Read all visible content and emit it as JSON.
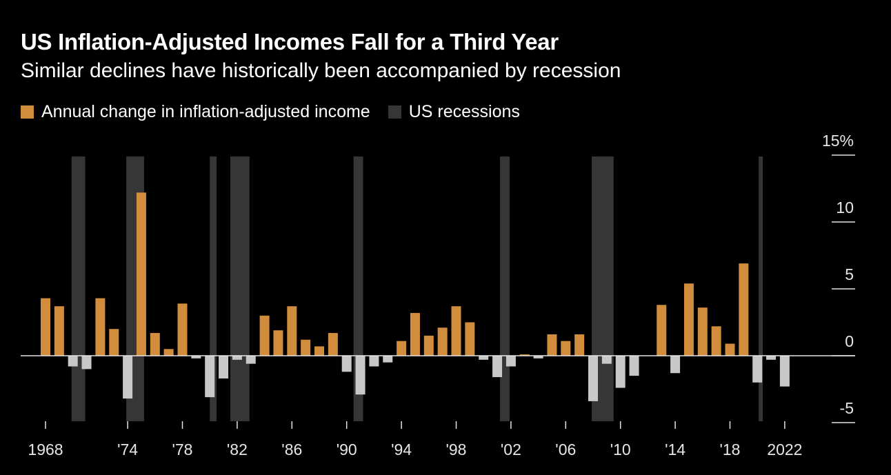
{
  "title": "US Inflation-Adjusted Incomes Fall for a Third Year",
  "subtitle": "Similar declines have historically been accompanied by recession",
  "legend": [
    {
      "label": "Annual change in inflation-adjusted income",
      "color": "#d18c3c"
    },
    {
      "label": "US recessions",
      "color": "#363636"
    }
  ],
  "chart_data": {
    "type": "bar",
    "title": "US Inflation-Adjusted Incomes Fall for a Third Year",
    "subtitle": "Similar declines have historically been accompanied by recession",
    "xlabel": "",
    "ylabel": "",
    "ylim": [
      -5,
      15
    ],
    "y_ticks": [
      15,
      10,
      5,
      0,
      -5
    ],
    "y_tick_labels": [
      "15%",
      "10",
      "5",
      "0",
      "-5"
    ],
    "x_ticks": [
      1968,
      1974,
      1978,
      1982,
      1986,
      1990,
      1994,
      1998,
      2002,
      2006,
      2010,
      2014,
      2018,
      2022
    ],
    "x_tick_labels": [
      "1968",
      "'74",
      "'78",
      "'82",
      "'86",
      "'90",
      "'94",
      "'98",
      "'02",
      "'06",
      "'10",
      "'14",
      "'18",
      "2022"
    ],
    "series": [
      {
        "name": "Annual change in inflation-adjusted income",
        "positive_color": "#d18c3c",
        "negative_color": "#c8c8c8",
        "x": [
          1968,
          1969,
          1970,
          1971,
          1972,
          1973,
          1974,
          1975,
          1976,
          1977,
          1978,
          1979,
          1980,
          1981,
          1982,
          1983,
          1984,
          1985,
          1986,
          1987,
          1988,
          1989,
          1990,
          1991,
          1992,
          1993,
          1994,
          1995,
          1996,
          1997,
          1998,
          1999,
          2000,
          2001,
          2002,
          2003,
          2004,
          2005,
          2006,
          2007,
          2008,
          2009,
          2010,
          2011,
          2012,
          2013,
          2014,
          2015,
          2016,
          2017,
          2018,
          2019,
          2020,
          2021,
          2022
        ],
        "values": [
          4.3,
          3.7,
          -0.8,
          -1.0,
          4.3,
          2.0,
          -3.2,
          12.2,
          1.7,
          0.5,
          3.9,
          -0.2,
          -3.1,
          -1.7,
          -0.3,
          -0.6,
          3.0,
          1.9,
          3.7,
          1.2,
          0.7,
          1.7,
          -1.2,
          -2.9,
          -0.8,
          -0.5,
          1.1,
          3.2,
          1.5,
          2.1,
          3.7,
          2.5,
          -0.3,
          -1.6,
          -0.8,
          0.1,
          -0.2,
          1.6,
          1.1,
          1.6,
          -3.4,
          -0.6,
          -2.4,
          -1.5,
          0.0,
          3.8,
          -1.3,
          5.4,
          3.6,
          2.2,
          0.9,
          6.9,
          -2.0,
          -0.3,
          -2.3
        ]
      }
    ],
    "recessions": [
      {
        "start": 1969.9,
        "end": 1970.9
      },
      {
        "start": 1973.9,
        "end": 1975.2
      },
      {
        "start": 1980.0,
        "end": 1980.5
      },
      {
        "start": 1981.5,
        "end": 1982.9
      },
      {
        "start": 1990.5,
        "end": 1991.2
      },
      {
        "start": 2001.2,
        "end": 2001.9
      },
      {
        "start": 2007.9,
        "end": 2009.5
      },
      {
        "start": 2020.1,
        "end": 2020.4
      }
    ],
    "grid": false,
    "legend_position": "top-left",
    "y_axis_position": "right"
  }
}
